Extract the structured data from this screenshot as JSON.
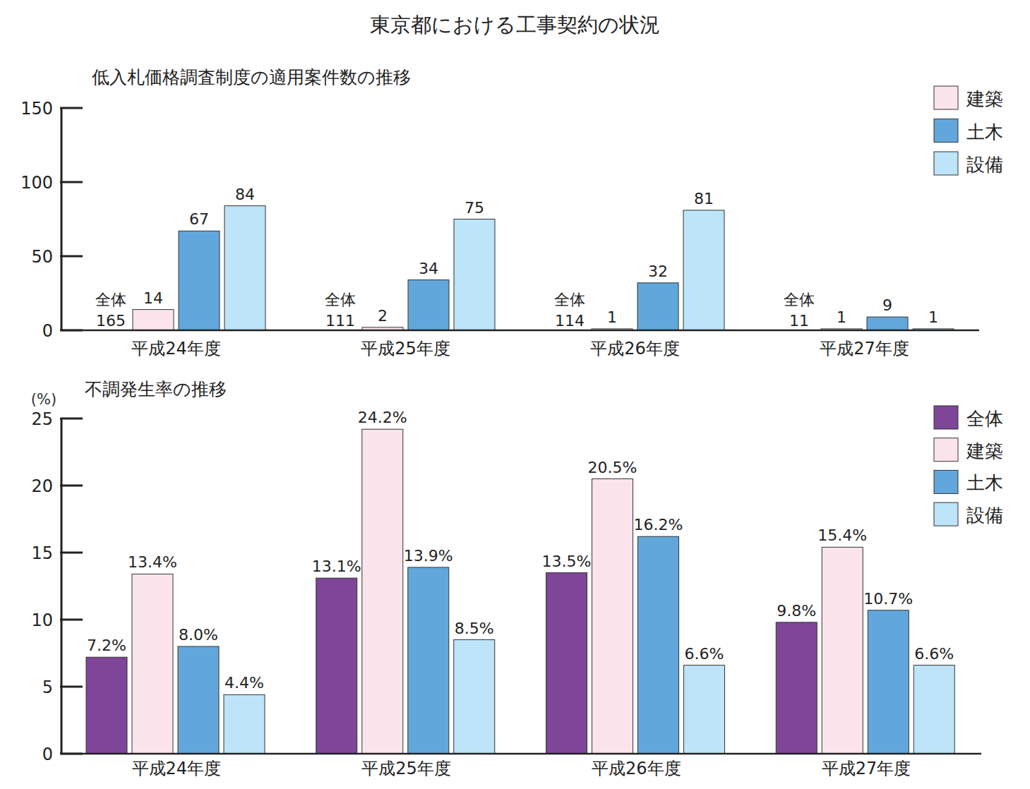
{
  "title": "東京都における工事契約の状況",
  "chart_data": [
    {
      "type": "bar",
      "title": "低入札価格調査制度の適用案件数の推移",
      "categories": [
        "平成24年度",
        "平成25年度",
        "平成26年度",
        "平成27年度"
      ],
      "series": [
        {
          "name": "建築",
          "color": "#fce4ec",
          "values": [
            14,
            2,
            1,
            1
          ]
        },
        {
          "name": "土木",
          "color": "#62a7dc",
          "values": [
            67,
            34,
            32,
            9
          ]
        },
        {
          "name": "設備",
          "color": "#bde4f8",
          "values": [
            84,
            75,
            81,
            1
          ]
        }
      ],
      "total_label": "全体",
      "totals": [
        165,
        111,
        114,
        11
      ],
      "ylim": [
        0,
        150
      ],
      "yticks": [
        0,
        50,
        100,
        150
      ],
      "grid": false,
      "legend": "top-right",
      "data_labels": true
    },
    {
      "type": "bar",
      "title": "不調発生率の推移",
      "y_label": "(%)",
      "categories": [
        "平成24年度",
        "平成25年度",
        "平成26年度",
        "平成27年度"
      ],
      "series": [
        {
          "name": "全体",
          "color": "#7e4598",
          "values": [
            7.2,
            13.1,
            13.5,
            9.8
          ],
          "value_labels": [
            "7.2%",
            "13.1%",
            "13.5%",
            "9.8%"
          ]
        },
        {
          "name": "建築",
          "color": "#fce4ec",
          "values": [
            13.4,
            24.2,
            20.5,
            15.4
          ],
          "value_labels": [
            "13.4%",
            "24.2%",
            "20.5%",
            "15.4%"
          ]
        },
        {
          "name": "土木",
          "color": "#62a7dc",
          "values": [
            8.0,
            13.9,
            16.2,
            10.7
          ],
          "value_labels": [
            "8.0%",
            "13.9%",
            "16.2%",
            "10.7%"
          ]
        },
        {
          "name": "設備",
          "color": "#bde4f8",
          "values": [
            4.4,
            8.5,
            6.6,
            6.6
          ],
          "value_labels": [
            "4.4%",
            "8.5%",
            "6.6%",
            "6.6%"
          ]
        }
      ],
      "ylim": [
        0,
        25
      ],
      "yticks": [
        0,
        5,
        10,
        15,
        20,
        25
      ],
      "grid": false,
      "legend": "top-right",
      "data_labels": true
    }
  ]
}
